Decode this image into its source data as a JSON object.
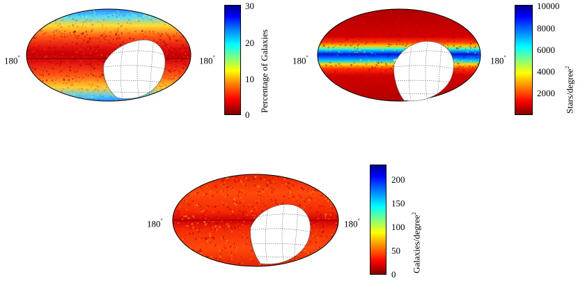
{
  "panels": [
    {
      "id": "galaxy-percentage",
      "lon_label_left": "180",
      "lon_label_right": "180",
      "degree_symbol": "°",
      "colorbar": {
        "label": "Percentage of Galaxies",
        "ticks": [
          "30",
          "20",
          "10",
          "0"
        ],
        "min": 0,
        "max": 30
      },
      "pattern": "high-latitude",
      "masked_region": true
    },
    {
      "id": "star-density",
      "lon_label_left": "180",
      "lon_label_right": "180",
      "degree_symbol": "°",
      "colorbar": {
        "label": "Stars/degree",
        "label_sup": "2",
        "ticks": [
          "10000",
          "8000",
          "6000",
          "4000",
          "2000"
        ],
        "min": 0,
        "max": 10000
      },
      "pattern": "galactic-plane",
      "masked_region": true
    },
    {
      "id": "galaxy-density",
      "lon_label_left": "180",
      "lon_label_right": "180",
      "degree_symbol": "°",
      "colorbar": {
        "label": "Galaxies/degree",
        "label_sup": "2",
        "ticks": [
          "200",
          "150",
          "100",
          "50",
          "0"
        ],
        "min": 0,
        "max": 230
      },
      "pattern": "uniform",
      "masked_region": true
    }
  ],
  "colormap": [
    "#7f0000",
    "#ff0000",
    "#ff8000",
    "#ffff00",
    "#80ff80",
    "#00ffff",
    "#0080ff",
    "#0000ff",
    "#00008f"
  ]
}
